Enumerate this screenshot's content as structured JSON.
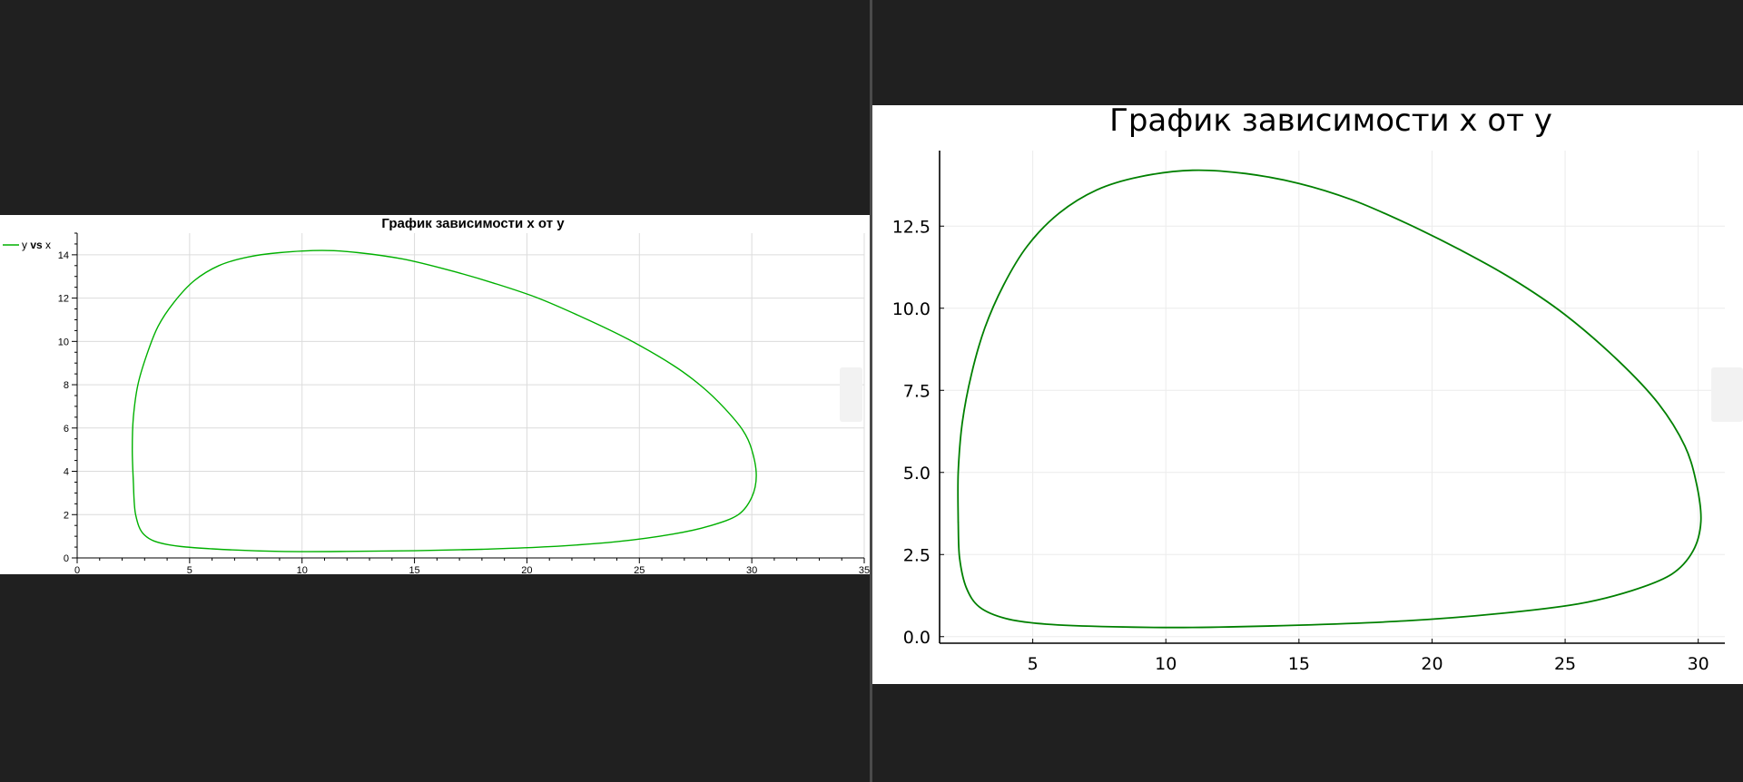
{
  "left_panel": {
    "title": "График зависимости x от y",
    "legend": [
      {
        "label_parts": [
          "y ",
          "vs",
          " x"
        ],
        "color": "#00b000"
      }
    ]
  },
  "right_panel": {
    "title": "График зависимости x от y"
  },
  "colors": {
    "background": "#202020",
    "plot_bg": "#ffffff",
    "left_line": "#00b000",
    "right_line": "#008000",
    "grid": "#dcdcdc"
  },
  "chart_data": [
    {
      "type": "line",
      "title": "График зависимости x от y",
      "legend_position": "top-left",
      "grid": true,
      "xlim": [
        0,
        35
      ],
      "ylim": [
        0,
        15
      ],
      "x_ticks": [
        0,
        5,
        10,
        15,
        20,
        25,
        30,
        35
      ],
      "y_ticks": [
        0,
        2,
        4,
        6,
        8,
        10,
        12,
        14
      ],
      "series": [
        {
          "name": "y vs x",
          "color": "#00b000",
          "x": [
            2.5,
            2.45,
            2.5,
            2.7,
            3.1,
            3.6,
            4.3,
            5.2,
            6.3,
            7.6,
            9.0,
            10.9,
            12.5,
            14.5,
            16.5,
            18.5,
            20.5,
            22.5,
            24.5,
            26.5,
            27.8,
            28.8,
            29.6,
            30.0,
            30.2,
            30.0,
            29.4,
            28.2,
            26.5,
            24.0,
            21.0,
            18.0,
            15.0,
            12.0,
            9.0,
            6.0,
            4.0,
            3.0,
            2.6,
            2.5
          ],
          "y": [
            3.5,
            5.0,
            6.5,
            8.0,
            9.4,
            10.7,
            11.8,
            12.8,
            13.5,
            13.9,
            14.1,
            14.2,
            14.1,
            13.8,
            13.3,
            12.7,
            12.0,
            11.1,
            10.1,
            8.9,
            7.9,
            6.9,
            5.9,
            5.0,
            3.8,
            2.8,
            2.0,
            1.5,
            1.1,
            0.75,
            0.52,
            0.4,
            0.33,
            0.3,
            0.3,
            0.42,
            0.62,
            1.05,
            2.0,
            3.5
          ]
        }
      ]
    },
    {
      "type": "line",
      "title": "График зависимости x от y",
      "grid": true,
      "xlim": [
        1.5,
        31
      ],
      "ylim": [
        -0.2,
        14.8
      ],
      "x_ticks": [
        5,
        10,
        15,
        20,
        25,
        30
      ],
      "y_ticks": [
        0.0,
        2.5,
        5.0,
        7.5,
        10.0,
        12.5
      ],
      "y_tick_labels": [
        "0.0",
        "2.5",
        "5.0",
        "7.5",
        "10.0",
        "12.5"
      ],
      "series": [
        {
          "color": "#008000",
          "x": [
            2.2,
            2.2,
            2.35,
            2.7,
            3.2,
            3.9,
            4.8,
            6.0,
            7.4,
            9.0,
            11.0,
            13.0,
            15.0,
            17.0,
            19.0,
            21.0,
            23.0,
            25.0,
            27.0,
            28.5,
            29.5,
            29.95,
            30.1,
            29.8,
            29.0,
            27.5,
            25.5,
            22.5,
            19.0,
            15.0,
            11.0,
            8.0,
            5.5,
            4.0,
            3.0,
            2.5,
            2.25,
            2.2
          ],
          "y": [
            3.5,
            5.0,
            6.5,
            8.0,
            9.4,
            10.7,
            11.9,
            12.9,
            13.6,
            14.0,
            14.2,
            14.1,
            13.8,
            13.3,
            12.6,
            11.8,
            10.9,
            9.8,
            8.4,
            7.1,
            5.8,
            4.6,
            3.5,
            2.6,
            1.9,
            1.4,
            1.0,
            0.7,
            0.48,
            0.35,
            0.28,
            0.3,
            0.38,
            0.55,
            0.9,
            1.5,
            2.4,
            3.5
          ]
        }
      ]
    }
  ]
}
